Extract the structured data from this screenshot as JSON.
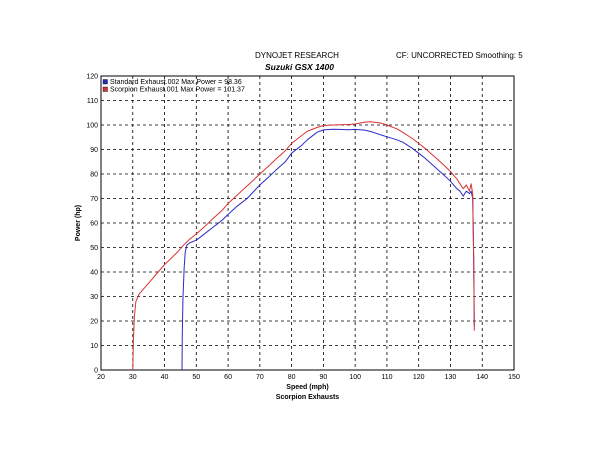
{
  "header": {
    "title": "DYNOJET RESEARCH",
    "subtitle": "Suzuki GSX 1400",
    "settings": "CF: UNCORRECTED  Smoothing: 5"
  },
  "chart_data": {
    "type": "line",
    "xlabel": "Speed (mph)",
    "ylabel": "Power (hp)",
    "caption": "Scorpion Exhausts",
    "xlim": [
      20,
      150
    ],
    "ylim": [
      0,
      120
    ],
    "xticks": [
      20,
      30,
      40,
      50,
      60,
      70,
      80,
      90,
      100,
      110,
      120,
      130,
      140,
      150
    ],
    "yticks": [
      0,
      10,
      20,
      30,
      40,
      50,
      60,
      70,
      80,
      90,
      100,
      110,
      120
    ],
    "grid": true,
    "legend_position": "top-left",
    "series": [
      {
        "name": "Standard Exhaust.002 Max Power = 98.36",
        "color": "#2a2ac8",
        "x": [
          45.5,
          45.6,
          45.8,
          46.2,
          46.5,
          47,
          48,
          50,
          52,
          55,
          58,
          60,
          63,
          66,
          70,
          73,
          75,
          78,
          80,
          83,
          85,
          88,
          90,
          93,
          95,
          98,
          100,
          103,
          105,
          108,
          110,
          113,
          115,
          118,
          120,
          122,
          125,
          128,
          130,
          132,
          133,
          134,
          135,
          136,
          136.5,
          137,
          137.3,
          137.5
        ],
        "y": [
          0,
          15,
          30,
          42,
          48,
          51,
          52,
          53,
          55,
          58,
          61,
          63.5,
          67,
          70,
          75.5,
          79,
          81.5,
          85,
          88.5,
          91.5,
          94,
          97,
          98,
          98.3,
          98.2,
          98.1,
          98.2,
          97.9,
          97.3,
          96,
          95.2,
          94,
          93,
          90.5,
          88.5,
          86.5,
          83,
          79.5,
          77,
          74,
          73,
          71,
          73,
          72,
          73,
          70,
          45,
          18
        ]
      },
      {
        "name": "Scorpion Exhaust.001 Max Power = 101.37",
        "color": "#d83232",
        "x": [
          30,
          30.2,
          30.5,
          31,
          32,
          34,
          36,
          38,
          40,
          42,
          44,
          46,
          48,
          50,
          53,
          55,
          58,
          60,
          63,
          65,
          68,
          70,
          73,
          75,
          78,
          80,
          83,
          85,
          88,
          90,
          93,
          95,
          98,
          100,
          103,
          105,
          108,
          110,
          113,
          115,
          118,
          120,
          122,
          125,
          128,
          130,
          132,
          133,
          134,
          135,
          136,
          136.5,
          137,
          137.3,
          137.5
        ],
        "y": [
          0,
          12,
          22,
          28,
          31,
          34,
          37,
          40,
          43,
          45.5,
          48,
          51,
          53.5,
          55.5,
          59,
          61.5,
          65,
          68,
          71.5,
          74,
          77.5,
          80,
          83.5,
          86,
          89.5,
          92.5,
          95.5,
          97.5,
          99,
          99.8,
          100,
          100.1,
          100.2,
          100.4,
          101.2,
          101.3,
          100.8,
          100,
          98.5,
          97,
          94.5,
          92.5,
          90.5,
          87,
          83.5,
          81,
          78,
          76,
          74,
          75.5,
          73,
          76,
          72,
          45,
          16
        ]
      }
    ]
  }
}
